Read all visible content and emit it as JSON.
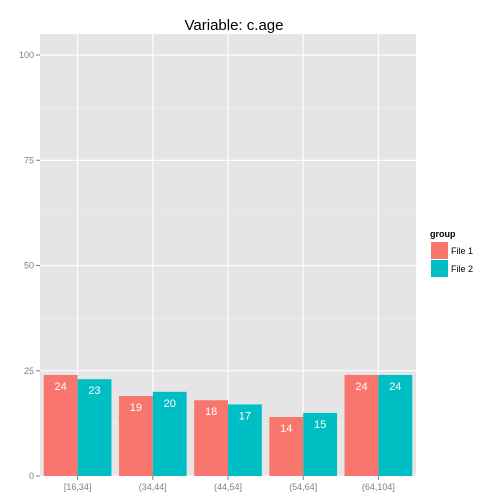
{
  "chart_data": {
    "type": "bar",
    "title": "Variable:  c.age",
    "xlabel": "",
    "ylabel": "",
    "categories": [
      "[16,34]",
      "(34,44]",
      "(44,54]",
      "(54,64]",
      "(64,104]"
    ],
    "series": [
      {
        "name": "File 1",
        "values": [
          24,
          19,
          18,
          14,
          24
        ],
        "color": "#F8766D"
      },
      {
        "name": "File 2",
        "values": [
          23,
          20,
          17,
          15,
          24
        ],
        "color": "#00BFC4"
      }
    ],
    "ylim": [
      0,
      105
    ],
    "yticks": [
      0,
      25,
      50,
      75,
      100
    ],
    "legend": {
      "title": "group",
      "placement": "right"
    },
    "grid": true,
    "panel_background": "#E5E5E5",
    "grid_color": "#FFFFFF",
    "minor_grid_color": "#F2F2F2"
  }
}
